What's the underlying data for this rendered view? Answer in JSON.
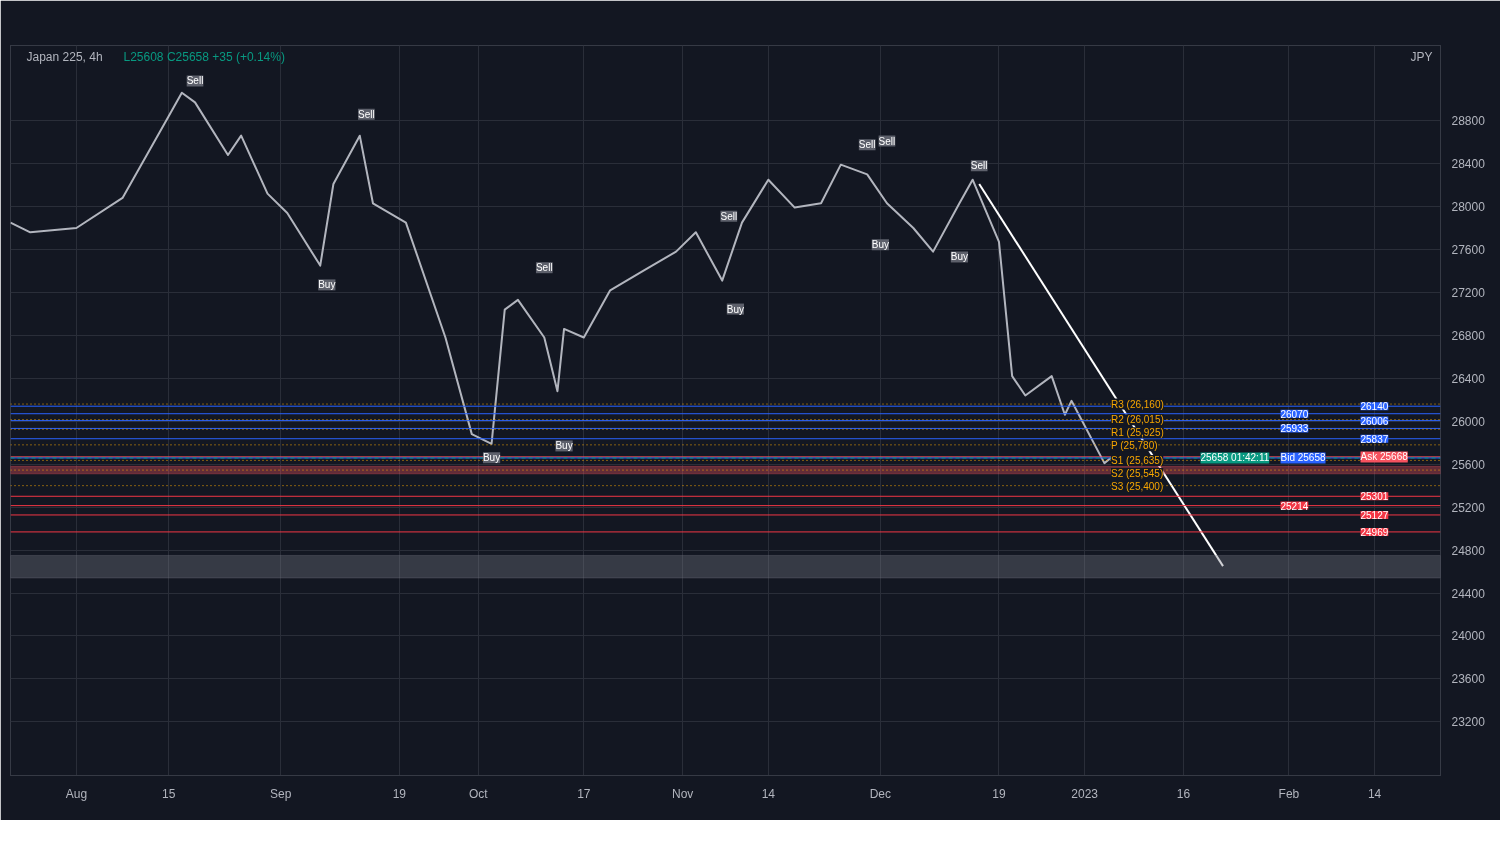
{
  "chart_data": {
    "type": "line",
    "title": "Japan 225, 4h",
    "ylabel": "JPY",
    "annotations": [
      "L25608 C25658 +35 (+0.14%)",
      {
        "text": "Sell",
        "x": "2022-08-19",
        "y": 29170
      },
      {
        "text": "Sell",
        "x": "2022-09-14",
        "y": 28860
      },
      {
        "text": "Sell",
        "x": "2022-10-11",
        "y": 27430
      },
      {
        "text": "Sell",
        "x": "2022-11-08",
        "y": 27910
      },
      {
        "text": "Sell",
        "x": "2022-11-29",
        "y": 28575
      },
      {
        "text": "Sell",
        "x": "2022-12-02",
        "y": 28610
      },
      {
        "text": "Sell",
        "x": "2022-12-16",
        "y": 28380
      },
      {
        "text": "Buy",
        "x": "2022-09-08",
        "y": 27270
      },
      {
        "text": "Buy",
        "x": "2022-10-03",
        "y": 25660
      },
      {
        "text": "Buy",
        "x": "2022-10-14",
        "y": 25770
      },
      {
        "text": "Buy",
        "x": "2022-11-09",
        "y": 27045
      },
      {
        "text": "Buy",
        "x": "2022-12-01",
        "y": 27645
      },
      {
        "text": "Buy",
        "x": "2022-12-13",
        "y": 27530
      }
    ],
    "series": [
      {
        "color": "#b2b5be",
        "x": [
          "2022-07-22",
          "2022-07-25",
          "2022-08-01",
          "2022-08-08",
          "2022-08-15",
          "2022-08-17",
          "2022-08-19",
          "2022-08-24",
          "2022-08-26",
          "2022-08-30",
          "2022-09-02",
          "2022-09-07",
          "2022-09-09",
          "2022-09-13",
          "2022-09-15",
          "2022-09-20",
          "2022-09-26",
          "2022-09-30",
          "2022-10-03",
          "2022-10-05",
          "2022-10-07",
          "2022-10-11",
          "2022-10-13",
          "2022-10-14",
          "2022-10-17",
          "2022-10-21",
          "2022-10-26",
          "2022-10-31",
          "2022-11-03",
          "2022-11-07",
          "2022-11-10",
          "2022-11-14",
          "2022-11-18",
          "2022-11-22",
          "2022-11-25",
          "2022-11-29",
          "2022-12-02",
          "2022-12-06",
          "2022-12-09",
          "2022-12-13",
          "2022-12-15",
          "2022-12-19",
          "2022-12-21",
          "2022-12-23",
          "2022-12-27",
          "2022-12-29",
          "2022-12-30",
          "2023-01-04",
          "2023-01-05"
        ],
        "values": [
          27850,
          27760,
          27800,
          28080,
          28840,
          29060,
          28970,
          28480,
          28660,
          28120,
          27940,
          27450,
          28210,
          28660,
          28030,
          27850,
          26780,
          25880,
          25790,
          27040,
          27130,
          26780,
          26280,
          26860,
          26780,
          27220,
          27400,
          27580,
          27760,
          27310,
          27850,
          28250,
          27990,
          28030,
          28390,
          28300,
          28030,
          27800,
          27580,
          28030,
          28250,
          27670,
          26420,
          26240,
          26420,
          26060,
          26190,
          25610,
          25660
        ]
      },
      {
        "color": "#ffffff",
        "x": [
          "2022-12-16",
          "2023-01-22"
        ],
        "values": [
          28210,
          24650
        ]
      }
    ],
    "ref_lines": [
      {
        "axis": "y",
        "value": 26140,
        "label": "26140",
        "color": "#2962ff"
      },
      {
        "axis": "y",
        "value": 26070,
        "label": "26070",
        "color": "#2962ff"
      },
      {
        "axis": "y",
        "value": 26006,
        "label": "26006",
        "color": "#2962ff"
      },
      {
        "axis": "y",
        "value": 25933,
        "label": "25933",
        "color": "#2962ff"
      },
      {
        "axis": "y",
        "value": 25837,
        "label": "25837",
        "color": "#2962ff"
      },
      {
        "axis": "y",
        "value": 25668,
        "label": "Ask 25668",
        "color": "#f7525f"
      },
      {
        "axis": "y",
        "value": 25658,
        "label": "Bid 25658",
        "color": "#2962ff"
      },
      {
        "axis": "y",
        "value": 25658,
        "label": "25658 01:42:11",
        "color": "#089981",
        "line_style": "dashed"
      },
      {
        "axis": "y",
        "value": 25301,
        "label": "25301",
        "color": "#f23645"
      },
      {
        "axis": "y",
        "value": 25214,
        "label": "25214",
        "color": "#f23645"
      },
      {
        "axis": "y",
        "value": 25127,
        "label": "25127",
        "color": "#f23645"
      },
      {
        "axis": "y",
        "value": 24969,
        "label": "24969",
        "color": "#f23645"
      },
      {
        "axis": "y",
        "value": 26160,
        "label": "R3 (26,160)",
        "color": "#f7a600",
        "line_style": "dotted"
      },
      {
        "axis": "y",
        "value": 26015,
        "label": "R2 (26,015)",
        "color": "#f7a600",
        "line_style": "dotted"
      },
      {
        "axis": "y",
        "value": 25925,
        "label": "R1 (25,925)",
        "color": "#f7a600",
        "line_style": "dotted"
      },
      {
        "axis": "y",
        "value": 25780,
        "label": "P (25,780)",
        "color": "#f7a600",
        "line_style": "dotted"
      },
      {
        "axis": "y",
        "value": 25635,
        "label": "S1 (25,635)",
        "color": "#f7a600",
        "line_style": "dotted"
      },
      {
        "axis": "y",
        "value": 25545,
        "label": "S2 (25,545)",
        "color": "#f7a600",
        "line_style": "dotted"
      },
      {
        "axis": "y",
        "value": 25400,
        "label": "S3 (25,400)",
        "color": "#f7a600",
        "line_style": "dotted"
      }
    ],
    "bands": [
      {
        "axis": "y",
        "from": 24540,
        "to": 24750,
        "color": "#787b86"
      },
      {
        "axis": "y",
        "from": 25510,
        "to": 25580,
        "color": "#f7525f"
      }
    ],
    "xlim": [
      "2022-07-22",
      "2023-02-24"
    ],
    "xticks": [
      {
        "value": "2022-08-01",
        "label": "Aug"
      },
      {
        "value": "2022-08-15",
        "label": "15"
      },
      {
        "value": "2022-09-01",
        "label": "Sep"
      },
      {
        "value": "2022-09-19",
        "label": "19"
      },
      {
        "value": "2022-10-01",
        "label": "Oct"
      },
      {
        "value": "2022-10-17",
        "label": "17"
      },
      {
        "value": "2022-11-01",
        "label": "Nov"
      },
      {
        "value": "2022-11-14",
        "label": "14"
      },
      {
        "value": "2022-12-01",
        "label": "Dec"
      },
      {
        "value": "2022-12-19",
        "label": "19"
      },
      {
        "value": "2023-01-01",
        "label": "2023"
      },
      {
        "value": "2023-01-16",
        "label": "16"
      },
      {
        "value": "2023-02-01",
        "label": "Feb"
      },
      {
        "value": "2023-02-14",
        "label": "14"
      }
    ],
    "ylim": [
      22700,
      29500
    ],
    "yticks": [
      23200,
      23600,
      24000,
      24400,
      24800,
      25200,
      25600,
      26000,
      26400,
      26800,
      27200,
      27600,
      28000,
      28400,
      28800
    ],
    "grid": true,
    "line_style": "solid",
    "marker": "none"
  }
}
